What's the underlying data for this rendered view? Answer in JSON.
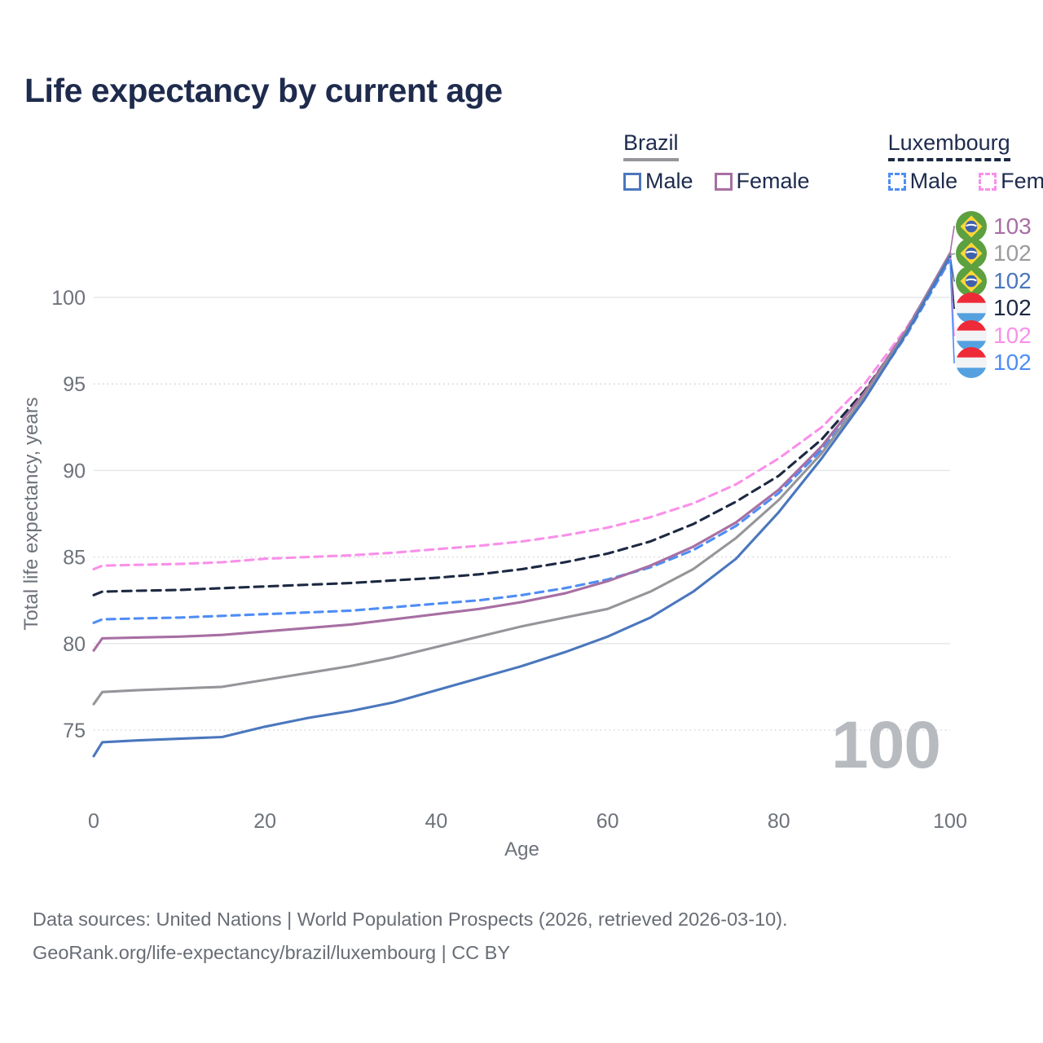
{
  "title": "Life expectancy by current age",
  "legend": {
    "groups": [
      {
        "label": "Brazil",
        "underline_style": "solid",
        "underline_color": "#95959a",
        "items": [
          {
            "label": "Male",
            "color": "#4a77bd",
            "dashed": false
          },
          {
            "label": "Female",
            "color": "#a76fa3",
            "dashed": false
          }
        ]
      },
      {
        "label": "Luxembourg",
        "underline_style": "dashed",
        "underline_color": "#1c2942",
        "items": [
          {
            "label": "Male",
            "color": "#4e8df5",
            "dashed": true
          },
          {
            "label": "Female",
            "color": "#f990e9",
            "dashed": true
          }
        ]
      }
    ]
  },
  "chart_data": {
    "type": "line",
    "title": "Life expectancy by current age",
    "xlabel": "Age",
    "ylabel": "Total life expectancy, years",
    "xlim": [
      0,
      100
    ],
    "ylim": [
      73,
      103.5
    ],
    "xticks": [
      0,
      20,
      40,
      60,
      80,
      100
    ],
    "yticks": [
      75,
      80,
      85,
      90,
      95,
      100
    ],
    "grid": "horizontal, solid at multiples of 10, dotted at multiples of 5",
    "legend_position": "top-right",
    "watermark": "100",
    "ages": [
      0,
      1,
      5,
      10,
      15,
      20,
      25,
      30,
      35,
      40,
      45,
      50,
      55,
      60,
      65,
      70,
      75,
      80,
      85,
      90,
      95,
      100
    ],
    "series": [
      {
        "name": "Luxembourg Female",
        "country": "luxembourg",
        "sex": "female",
        "color": "#f990e9",
        "dash": "10 7",
        "values": [
          84.3,
          84.5,
          84.55,
          84.6,
          84.7,
          84.9,
          85.0,
          85.1,
          85.25,
          85.45,
          85.65,
          85.9,
          86.25,
          86.7,
          87.3,
          88.1,
          89.2,
          90.7,
          92.5,
          95.0,
          98.3,
          102.3
        ]
      },
      {
        "name": "Luxembourg All",
        "country": "luxembourg",
        "sex": "all",
        "color": "#1c2942",
        "dash": "11 7",
        "values": [
          82.8,
          83.0,
          83.05,
          83.1,
          83.2,
          83.3,
          83.4,
          83.5,
          83.65,
          83.8,
          84.0,
          84.3,
          84.7,
          85.2,
          85.9,
          86.9,
          88.2,
          89.7,
          91.8,
          94.6,
          98.1,
          102.35
        ]
      },
      {
        "name": "Luxembourg Male",
        "country": "luxembourg",
        "sex": "male",
        "color": "#4e8df5",
        "dash": "10 7",
        "values": [
          81.2,
          81.4,
          81.45,
          81.5,
          81.6,
          81.7,
          81.8,
          81.9,
          82.1,
          82.3,
          82.5,
          82.8,
          83.2,
          83.7,
          84.4,
          85.4,
          86.8,
          88.7,
          91.2,
          94.2,
          97.9,
          102.2
        ]
      },
      {
        "name": "Brazil Female",
        "country": "brazil",
        "sex": "female",
        "color": "#a76fa3",
        "dash": null,
        "values": [
          79.6,
          80.3,
          80.35,
          80.4,
          80.5,
          80.7,
          80.9,
          81.1,
          81.4,
          81.7,
          82.0,
          82.4,
          82.9,
          83.6,
          84.5,
          85.6,
          87.0,
          88.9,
          91.4,
          94.5,
          98.2,
          102.55
        ]
      },
      {
        "name": "Brazil All",
        "country": "brazil",
        "sex": "all",
        "color": "#95959a",
        "dash": null,
        "values": [
          76.5,
          77.2,
          77.3,
          77.4,
          77.5,
          77.9,
          78.3,
          78.7,
          79.2,
          79.8,
          80.4,
          81.0,
          81.5,
          82.0,
          83.0,
          84.3,
          86.1,
          88.3,
          91.0,
          94.3,
          98.1,
          102.45
        ]
      },
      {
        "name": "Brazil Male",
        "country": "brazil",
        "sex": "male",
        "color": "#4a77bd",
        "dash": null,
        "values": [
          73.5,
          74.3,
          74.4,
          74.5,
          74.6,
          75.2,
          75.7,
          76.1,
          76.6,
          77.3,
          78.0,
          78.7,
          79.5,
          80.4,
          81.5,
          83.0,
          84.9,
          87.6,
          90.7,
          94.1,
          98.0,
          102.4
        ]
      }
    ],
    "end_labels": [
      {
        "value": "103",
        "color": "#a76fa3",
        "flag": "brazil",
        "series": 3
      },
      {
        "value": "102",
        "color": "#9b9b9f",
        "flag": "brazil",
        "series": 4
      },
      {
        "value": "102",
        "color": "#4a77bd",
        "flag": "brazil",
        "series": 5
      },
      {
        "value": "102",
        "color": "#1c2942",
        "flag": "luxembourg",
        "series": 1
      },
      {
        "value": "102",
        "color": "#f990e9",
        "flag": "luxembourg",
        "series": 0
      },
      {
        "value": "102",
        "color": "#4e8df5",
        "flag": "luxembourg",
        "series": 2
      }
    ]
  },
  "footer": {
    "line1": "Data sources: United Nations | World Population Prospects (2026, retrieved 2026-03-10).",
    "line2": "GeoRank.org/life-expectancy/brazil/luxembourg | CC BY"
  }
}
